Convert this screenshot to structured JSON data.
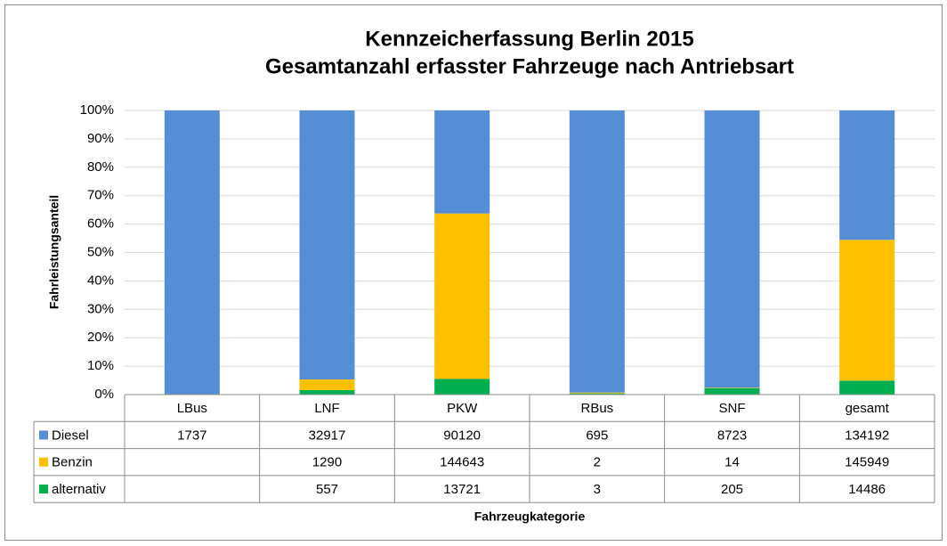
{
  "chart_data": {
    "type": "bar",
    "stacked": "percent",
    "title": "Kennzeicherfassung Berlin 2015",
    "subtitle": "Gesamtanzahl erfasster Fahrzeuge nach Antriebsart",
    "y_label": "Fahrleistungsanteil",
    "x_label": "Fahrzeugkategorie",
    "categories": [
      "LBus",
      "LNF",
      "PKW",
      "RBus",
      "SNF",
      "gesamt"
    ],
    "series": [
      {
        "name": "Diesel",
        "color": "#558ed5",
        "values": [
          1737,
          32917,
          90120,
          695,
          8723,
          134192
        ]
      },
      {
        "name": "Benzin",
        "color": "#ffc000",
        "values": [
          null,
          1290,
          144643,
          2,
          14,
          145949
        ]
      },
      {
        "name": "alternativ",
        "color": "#00b050",
        "values": [
          null,
          557,
          13721,
          3,
          205,
          14486
        ]
      }
    ],
    "ylim": [
      0,
      100
    ],
    "yticks": [
      {
        "value": 0,
        "label": "0%"
      },
      {
        "value": 10,
        "label": "10%"
      },
      {
        "value": 20,
        "label": "20%"
      },
      {
        "value": 30,
        "label": "30%"
      },
      {
        "value": 40,
        "label": "40%"
      },
      {
        "value": 50,
        "label": "50%"
      },
      {
        "value": 60,
        "label": "60%"
      },
      {
        "value": 70,
        "label": "70%"
      },
      {
        "value": 80,
        "label": "80%"
      },
      {
        "value": 90,
        "label": "90%"
      },
      {
        "value": 100,
        "label": "100%"
      }
    ],
    "grid": true,
    "data_table": true
  }
}
